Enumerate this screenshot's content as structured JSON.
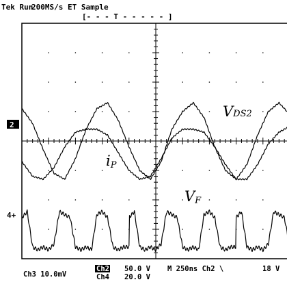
{
  "header": {
    "status": "Tek Run",
    "rate": "200MS/s ET Sample",
    "trigger_bar": "[- - -  T - - - - - ]"
  },
  "markers": {
    "ch2_ref": "2",
    "ch4_ref": "4+"
  },
  "readouts": {
    "ch3_scale": "Ch3  10.0mV",
    "ch2_label": "Ch2",
    "ch2_scale": "50.0 V",
    "ch4_label": "Ch4",
    "ch4_scale": "20.0 V",
    "timebase": "M 250ns  Ch2 \\",
    "trigger_level": "18 V"
  },
  "chart_data": {
    "type": "line",
    "title": "",
    "xlabel": "",
    "ylabel": "",
    "x_unit": "ns",
    "xlim": [
      0,
      2500
    ],
    "ylim_div": [
      -4,
      4
    ],
    "grid": true,
    "grid_style": "dotted 10x8 divisions",
    "annotations": [
      {
        "series": "VDS2",
        "text": "V",
        "sub": "DS2"
      },
      {
        "series": "iP",
        "text": "i",
        "sub": "P"
      },
      {
        "series": "VF",
        "text": "V",
        "sub": "F"
      }
    ],
    "series": [
      {
        "name": "VDS2",
        "unit": "div",
        "period_ns": 1140,
        "x": [
          0,
          100,
          200,
          300,
          400,
          500,
          600,
          700,
          800,
          900,
          1000,
          1100,
          1200,
          1300,
          1400,
          1500,
          1600,
          1700,
          1800,
          1900,
          2000,
          2100,
          2200,
          2300,
          2400,
          2500
        ],
        "y": [
          1.1,
          0.6,
          -0.3,
          -1.1,
          -1.3,
          -0.6,
          0.4,
          1.1,
          1.3,
          0.7,
          -0.2,
          -1.0,
          -1.3,
          -0.7,
          0.4,
          1.0,
          1.3,
          0.8,
          -0.2,
          -1.0,
          -1.3,
          -0.8,
          0.2,
          1.0,
          1.3,
          0.9
        ]
      },
      {
        "name": "iP",
        "unit": "div",
        "period_ns": 1140,
        "x": [
          0,
          100,
          200,
          300,
          400,
          500,
          600,
          700,
          800,
          900,
          1000,
          1100,
          1200,
          1300,
          1400,
          1500,
          1600,
          1700,
          1800,
          1900,
          2000,
          2100,
          2200,
          2300,
          2400,
          2500
        ],
        "y": [
          -0.7,
          -1.2,
          -1.3,
          -0.9,
          -0.2,
          0.3,
          0.4,
          0.4,
          0.2,
          -0.4,
          -1.0,
          -1.3,
          -1.2,
          -0.6,
          0.1,
          0.4,
          0.4,
          0.3,
          -0.2,
          -0.8,
          -1.3,
          -1.3,
          -0.8,
          -0.1,
          0.3,
          0.5
        ]
      },
      {
        "name": "VF",
        "unit": "div",
        "period_ns": 560,
        "x": [
          0,
          50,
          100,
          150,
          200,
          250,
          300,
          350,
          400,
          450,
          500,
          550,
          600,
          650,
          700,
          750,
          800,
          850,
          900,
          950,
          1000
        ],
        "y": [
          -2.6,
          -2.4,
          -3.6,
          -3.7,
          -3.6,
          -3.7,
          -3.5,
          -2.4,
          -2.5,
          -2.6,
          -3.6,
          -3.7,
          -3.6,
          -3.7,
          -2.5,
          -2.4,
          -2.6,
          -3.6,
          -3.7,
          -3.6,
          -3.6
        ]
      }
    ]
  }
}
